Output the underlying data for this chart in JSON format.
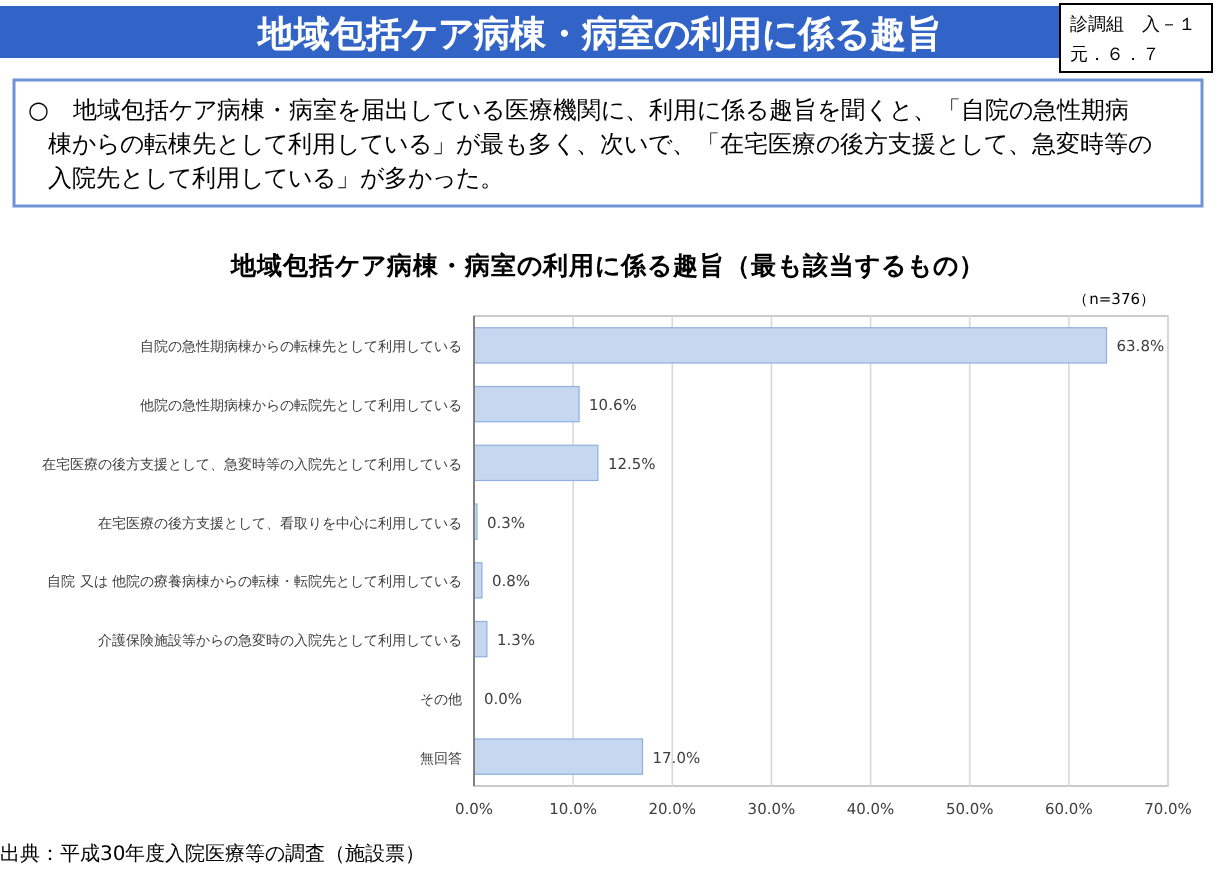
{
  "chart_data": {
    "type": "bar",
    "orientation": "horizontal",
    "title": "地域包括ケア病棟・病室の利用に係る趣旨",
    "subtitle": "地域包括ケア病棟・病室の利用に係る趣旨（最も該当するもの）",
    "annotations": [
      "診調組　入－１",
      "元．６．７",
      "○　地域包括ケア病棟・病室を届出している医療機関に、利用に係る趣旨を聞くと、「自院の急性期病棟からの転棟先として利用している」が最も多く、次いで、「在宅医療の後方支援として、急変時等の入院先として利用している」が多かった。",
      "（n=376）",
      "出典：平成30年度入院医療等の調査（施設票）"
    ],
    "categories": [
      "自院の急性期病棟からの転棟先として利用している",
      "他院の急性期病棟からの転院先として利用している",
      "在宅医療の後方支援として、急変時等の入院先として利用している",
      "在宅医療の後方支援として、看取りを中心に利用している",
      "自院 又は 他院の療養病棟からの転棟・転院先として利用している",
      "介護保険施設等からの急変時の入院先として利用している",
      "その他",
      "無回答"
    ],
    "values": [
      63.8,
      10.6,
      12.5,
      0.3,
      0.8,
      1.3,
      0.0,
      17.0
    ],
    "value_labels": [
      "63.8%",
      "10.6%",
      "12.5%",
      "0.3%",
      "0.8%",
      "1.3%",
      "0.0%",
      "17.0%"
    ],
    "color": "#c6d7f0",
    "xlim": [
      0,
      70
    ],
    "xticks": [
      {
        "value": 0,
        "label": "0.0%"
      },
      {
        "value": 10,
        "label": "10.0%"
      },
      {
        "value": 20,
        "label": "20.0%"
      },
      {
        "value": 30,
        "label": "30.0%"
      },
      {
        "value": 40,
        "label": "40.0%"
      },
      {
        "value": 50,
        "label": "50.0%"
      },
      {
        "value": 60,
        "label": "60.0%"
      },
      {
        "value": 70,
        "label": "70.0%"
      }
    ],
    "grid": "x"
  }
}
